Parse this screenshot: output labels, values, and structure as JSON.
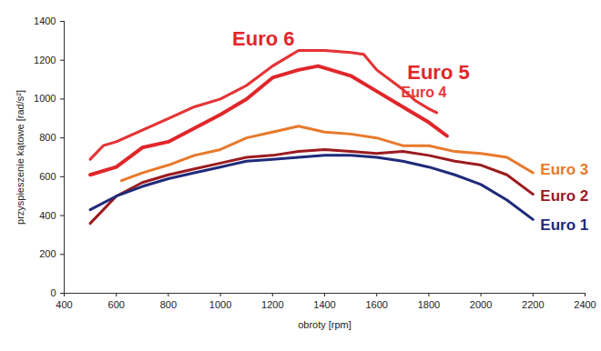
{
  "chart_data": {
    "type": "line",
    "xlabel": "obroty [rpm]",
    "ylabel": "przyspieszenie kątowe [rad/s²]",
    "xlim": [
      400,
      2400
    ],
    "xticks": [
      400,
      600,
      800,
      1000,
      1200,
      1400,
      1600,
      1800,
      2000,
      2200,
      2400
    ],
    "ylim": [
      0,
      1400
    ],
    "yticks": [
      0,
      200,
      400,
      600,
      800,
      1000,
      1200,
      1400
    ],
    "grid": false,
    "series": [
      {
        "name": "Euro 6",
        "color": "#e0262a",
        "x": [
          500,
          600,
          700,
          800,
          900,
          1000,
          1100,
          1200,
          1300,
          1375,
          1500,
          1600,
          1700,
          1800,
          1870
        ],
        "values": [
          610,
          650,
          750,
          780,
          850,
          920,
          1000,
          1110,
          1150,
          1170,
          1120,
          1040,
          960,
          880,
          810
        ]
      },
      {
        "name": "Euro 5",
        "color": "#e0262a",
        "x": [
          500,
          550,
          600,
          700,
          800,
          900,
          1000,
          1100,
          1200,
          1300,
          1400,
          1500,
          1550,
          1600,
          1700,
          1750,
          1800,
          1830
        ],
        "values": [
          690,
          760,
          780,
          840,
          900,
          960,
          1000,
          1070,
          1170,
          1250,
          1250,
          1240,
          1230,
          1150,
          1050,
          990,
          950,
          930
        ]
      },
      {
        "name": "Euro 4",
        "color": "#e8393a",
        "x": [
          500,
          550,
          600,
          700,
          800,
          900,
          1000,
          1100,
          1200,
          1300,
          1400,
          1500,
          1550,
          1600,
          1700,
          1750,
          1800,
          1830
        ],
        "values": [
          690,
          760,
          780,
          840,
          900,
          960,
          1000,
          1070,
          1170,
          1250,
          1250,
          1240,
          1230,
          1150,
          1050,
          990,
          950,
          930
        ]
      },
      {
        "name": "Euro 3",
        "color": "#e8792b",
        "x": [
          620,
          700,
          800,
          900,
          1000,
          1100,
          1200,
          1300,
          1400,
          1500,
          1600,
          1700,
          1800,
          1900,
          2000,
          2100,
          2200
        ],
        "values": [
          580,
          620,
          660,
          710,
          740,
          800,
          830,
          860,
          830,
          820,
          800,
          760,
          760,
          730,
          720,
          700,
          620
        ]
      },
      {
        "name": "Euro 2",
        "color": "#9b1b1f",
        "x": [
          500,
          600,
          700,
          800,
          900,
          1000,
          1100,
          1200,
          1300,
          1400,
          1500,
          1600,
          1700,
          1800,
          1900,
          2000,
          2100,
          2200
        ],
        "values": [
          360,
          500,
          570,
          610,
          640,
          670,
          700,
          710,
          730,
          740,
          730,
          720,
          730,
          710,
          680,
          660,
          610,
          510
        ]
      },
      {
        "name": "Euro 1",
        "color": "#1f2a7a",
        "x": [
          500,
          600,
          700,
          800,
          900,
          1000,
          1100,
          1200,
          1300,
          1400,
          1500,
          1600,
          1700,
          1800,
          1900,
          2000,
          2100,
          2200
        ],
        "values": [
          430,
          500,
          550,
          590,
          620,
          650,
          680,
          690,
          700,
          710,
          710,
          700,
          680,
          650,
          610,
          560,
          480,
          380
        ]
      }
    ]
  }
}
